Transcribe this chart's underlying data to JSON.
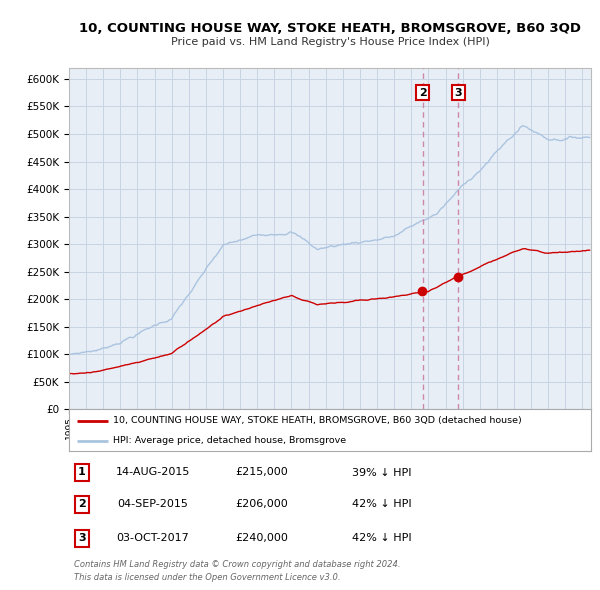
{
  "title": "10, COUNTING HOUSE WAY, STOKE HEATH, BROMSGROVE, B60 3QD",
  "subtitle": "Price paid vs. HM Land Registry's House Price Index (HPI)",
  "hpi_color": "#aac4e0",
  "price_color": "#cc0000",
  "grid_color": "#c8d4e4",
  "bg_color": "#e8eef6",
  "ylim": [
    0,
    620000
  ],
  "yticks": [
    0,
    50000,
    100000,
    150000,
    200000,
    250000,
    300000,
    350000,
    400000,
    450000,
    500000,
    550000,
    600000
  ],
  "xlim_start": 1995.0,
  "xlim_end": 2025.5,
  "t1_year": 2015.62,
  "t1_price": 215000,
  "t2_year": 2015.67,
  "t2_price": 206000,
  "t3_year": 2017.75,
  "t3_price": 240000,
  "vline_2_x": 2015.67,
  "vline_3_x": 2017.75,
  "box_border_color": "#cc0000",
  "legend_line1": "10, COUNTING HOUSE WAY, STOKE HEATH, BROMSGROVE, B60 3QD (detached house)",
  "legend_line2": "HPI: Average price, detached house, Bromsgrove",
  "table_rows": [
    {
      "num": "1",
      "date": "14-AUG-2015",
      "price": "£215,000",
      "hpi": "39% ↓ HPI"
    },
    {
      "num": "2",
      "date": "04-SEP-2015",
      "price": "£206,000",
      "hpi": "42% ↓ HPI"
    },
    {
      "num": "3",
      "date": "03-OCT-2017",
      "price": "£240,000",
      "hpi": "42% ↓ HPI"
    }
  ],
  "footnote1": "Contains HM Land Registry data © Crown copyright and database right 2024.",
  "footnote2": "This data is licensed under the Open Government Licence v3.0."
}
